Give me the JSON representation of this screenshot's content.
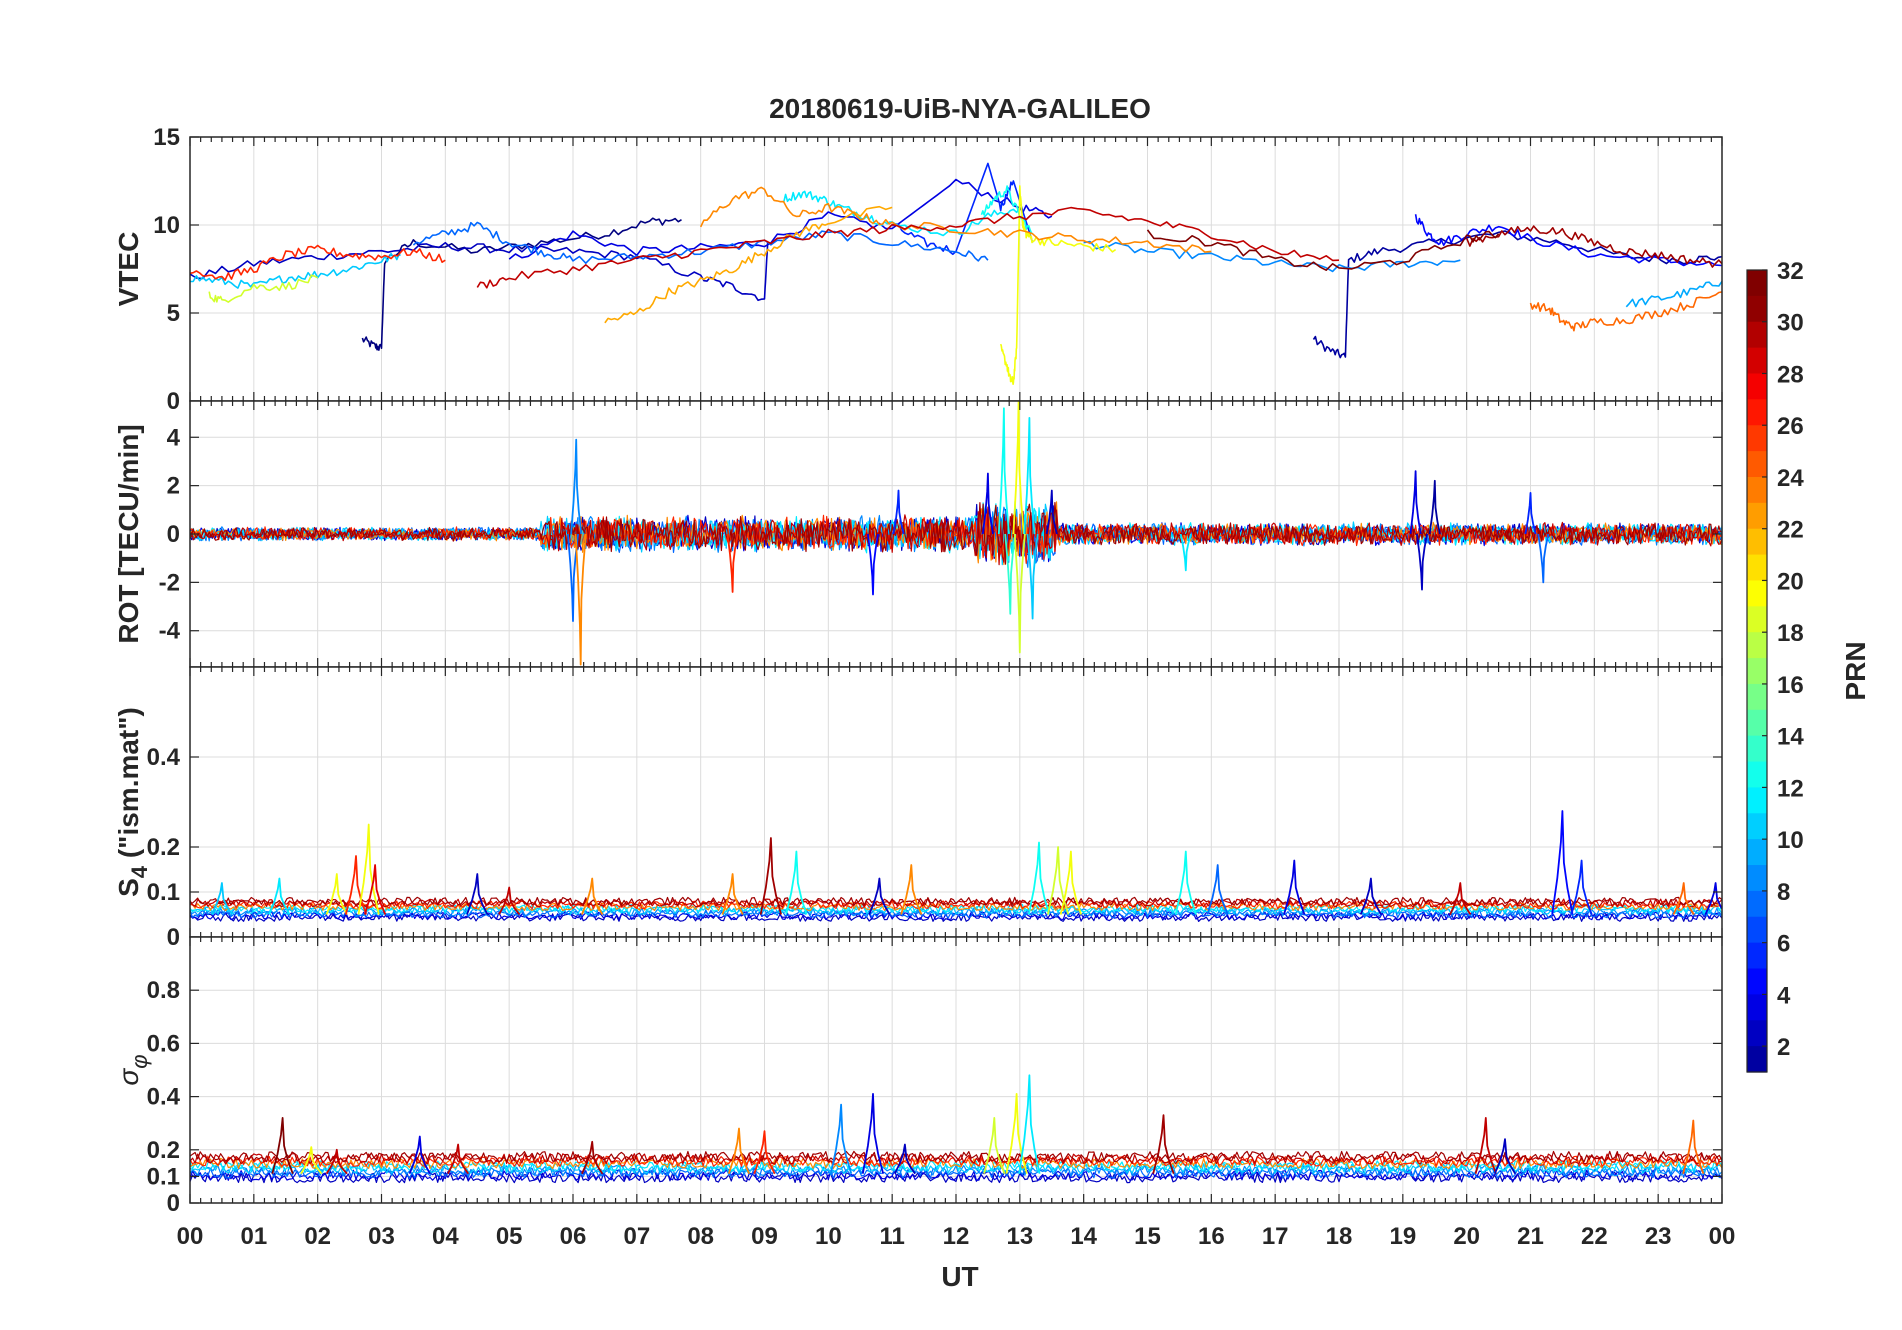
{
  "chart_data": {
    "type": "line",
    "title": "20180619-UiB-NYA-GALILEO",
    "xlabel": "UT",
    "x_ticks": [
      "00",
      "01",
      "02",
      "03",
      "04",
      "05",
      "06",
      "07",
      "08",
      "09",
      "10",
      "11",
      "12",
      "13",
      "14",
      "15",
      "16",
      "17",
      "18",
      "19",
      "20",
      "21",
      "22",
      "23",
      "00"
    ],
    "xlim": [
      0,
      24
    ],
    "grid": true,
    "panels": [
      {
        "id": "vtec",
        "ylabel": "VTEC",
        "ylim": [
          0,
          15
        ],
        "yticks": [
          "0",
          "5",
          "10",
          "15"
        ],
        "ytick_values": [
          0,
          5,
          10,
          15
        ],
        "series": [
          {
            "prn": 1,
            "x": [
              2.7,
              2.9,
              3.0,
              3.05,
              3.5,
              4.5,
              5.5,
              6.5,
              7.2,
              7.7
            ],
            "y": [
              3.5,
              3.1,
              3.0,
              8.0,
              9.0,
              8.5,
              9.0,
              9.5,
              10.2,
              10.3
            ]
          },
          {
            "prn": 2,
            "x": [
              17.6,
              17.9,
              18.1,
              18.15,
              18.6,
              19.5,
              20.5,
              21.5,
              22.5,
              23.4,
              24.0
            ],
            "y": [
              3.5,
              2.8,
              2.5,
              8.0,
              8.5,
              9.0,
              9.5,
              9.0,
              8.2,
              8.0,
              8.2
            ]
          },
          {
            "prn": 3,
            "x": [
              0.0,
              1.0,
              2.0,
              3.0,
              4.0,
              5.0,
              6.0,
              7.0,
              8.0,
              8.5,
              9.0,
              9.05
            ],
            "y": [
              7.0,
              7.8,
              8.2,
              8.5,
              8.8,
              8.6,
              8.5,
              8.2,
              7.0,
              6.5,
              5.8,
              9.0
            ]
          },
          {
            "prn": 4,
            "x": [
              5.0,
              6.0,
              7.0,
              8.0,
              9.0,
              10.0,
              11.0,
              12.0,
              13.0,
              13.5
            ],
            "y": [
              8.0,
              9.5,
              8.5,
              8.7,
              9.0,
              10.5,
              9.8,
              12.5,
              11.0,
              10.5
            ]
          },
          {
            "prn": 5,
            "x": [
              19.2,
              19.4,
              19.6,
              20.0,
              20.5,
              21.0,
              22.0,
              23.0,
              24.0
            ],
            "y": [
              10.5,
              9.5,
              9.0,
              9.5,
              10.0,
              9.2,
              8.3,
              8.0,
              7.7
            ]
          },
          {
            "prn": 6,
            "x": [
              11.0,
              11.5,
              12.0,
              12.5,
              12.7,
              12.9,
              13.2
            ],
            "y": [
              10.0,
              9.0,
              8.5,
              13.5,
              11.0,
              12.5,
              9.0
            ]
          },
          {
            "prn": 8,
            "x": [
              3.5,
              4.0,
              4.5,
              5.0,
              5.5,
              6.0,
              7.0,
              8.0,
              9.0,
              10.0,
              11.0,
              12.0,
              12.5
            ],
            "y": [
              9.0,
              9.5,
              10.0,
              9.0,
              8.5,
              8.0,
              8.2,
              8.5,
              9.0,
              9.5,
              9.0,
              8.5,
              8.0
            ]
          },
          {
            "prn": 9,
            "x": [
              14.0,
              15.0,
              16.0,
              17.0,
              18.0,
              19.0,
              19.9
            ],
            "y": [
              9.0,
              8.5,
              8.2,
              7.8,
              7.5,
              7.8,
              8.0
            ]
          },
          {
            "prn": 10,
            "x": [
              22.5,
              23.0,
              23.5,
              24.0
            ],
            "y": [
              5.5,
              5.8,
              6.2,
              6.8
            ]
          },
          {
            "prn": 11,
            "x": [
              0.0,
              0.5,
              1.0,
              1.5,
              2.0,
              2.5,
              3.0,
              3.3
            ],
            "y": [
              7.0,
              6.8,
              6.5,
              7.0,
              7.2,
              7.5,
              8.0,
              8.3
            ]
          },
          {
            "prn": 12,
            "x": [
              9.3,
              9.6,
              9.9,
              10.2,
              10.6,
              11.0,
              12.0,
              12.5,
              13.0
            ],
            "y": [
              11.5,
              11.8,
              11.5,
              11.0,
              10.5,
              10.0,
              9.5,
              10.5,
              11.0
            ]
          },
          {
            "prn": 13,
            "x": [
              12.4,
              12.6,
              12.8,
              13.0,
              13.2
            ],
            "y": [
              10.5,
              11.5,
              12.0,
              10.5,
              9.5
            ]
          },
          {
            "prn": 19,
            "x": [
              0.3,
              0.5,
              1.0,
              1.5,
              2.0
            ],
            "y": [
              6.0,
              5.7,
              6.5,
              6.5,
              7.0
            ]
          },
          {
            "prn": 20,
            "x": [
              12.7,
              12.8,
              12.85,
              12.9,
              12.95,
              13.0,
              13.05,
              13.1,
              13.2,
              13.5,
              14.0,
              14.5
            ],
            "y": [
              3.0,
              2.0,
              1.2,
              1.1,
              3.0,
              12.0,
              10.0,
              9.5,
              9.2,
              9.0,
              8.8,
              8.6
            ]
          },
          {
            "prn": 23,
            "x": [
              6.5,
              7.0,
              7.5,
              8.0,
              8.5,
              9.0,
              9.5,
              10.0,
              11.0
            ],
            "y": [
              4.5,
              5.0,
              6.2,
              6.8,
              7.5,
              8.5,
              9.5,
              10.2,
              11.0
            ]
          },
          {
            "prn": 24,
            "x": [
              8.0,
              8.5,
              9.0,
              9.5,
              10.0,
              10.5,
              11.0,
              12.0,
              13.0,
              14.0,
              15.0,
              16.0
            ],
            "y": [
              10.0,
              11.5,
              12.0,
              10.5,
              11.0,
              10.5,
              10.0,
              9.8,
              9.5,
              9.2,
              9.0,
              8.5
            ]
          },
          {
            "prn": 25,
            "x": [
              21.0,
              21.3,
              21.5,
              21.7,
              22.0,
              22.5,
              23.0,
              23.5,
              24.0
            ],
            "y": [
              5.5,
              5.2,
              4.5,
              4.2,
              4.5,
              4.6,
              5.0,
              5.5,
              6.2
            ]
          },
          {
            "prn": 27,
            "x": [
              0.0,
              0.5,
              1.0,
              1.5,
              2.0,
              2.5,
              3.0,
              3.5,
              4.0
            ],
            "y": [
              7.5,
              7.0,
              7.5,
              8.3,
              8.6,
              8.3,
              8.2,
              8.5,
              8.0
            ]
          },
          {
            "prn": 30,
            "x": [
              4.5,
              5.0,
              6.0,
              7.0,
              8.0,
              9.0,
              10.0,
              11.0,
              12.0,
              13.0,
              14.0,
              15.0,
              16.0,
              17.0,
              18.0
            ],
            "y": [
              6.5,
              7.0,
              7.5,
              8.0,
              8.5,
              9.0,
              9.5,
              9.8,
              10.0,
              10.5,
              10.8,
              10.2,
              9.5,
              8.5,
              8.0
            ]
          },
          {
            "prn": 31,
            "x": [
              20.0,
              20.5,
              21.0,
              21.5,
              22.0,
              22.5,
              23.0,
              23.5,
              24.0
            ],
            "y": [
              9.0,
              9.5,
              9.8,
              9.6,
              9.0,
              8.5,
              8.3,
              8.0,
              7.8
            ]
          },
          {
            "prn": 32,
            "x": [
              15.0,
              16.0,
              17.0,
              18.0,
              19.0,
              20.0,
              20.5
            ],
            "y": [
              9.5,
              9.0,
              8.0,
              7.5,
              8.0,
              9.2,
              9.5
            ]
          }
        ]
      },
      {
        "id": "rot",
        "ylabel": "ROT [TECU/min]",
        "ylim": [
          -5.5,
          5.5
        ],
        "yticks": [
          "-4",
          "-2",
          "0",
          "2",
          "4"
        ],
        "ytick_values": [
          -4,
          -2,
          0,
          2,
          4
        ],
        "noise_bands": [
          {
            "x0": 0,
            "x1": 5.5,
            "amp": 0.3
          },
          {
            "x0": 5.5,
            "x1": 12.3,
            "amp": 0.8
          },
          {
            "x0": 12.3,
            "x1": 13.6,
            "amp": 1.4
          },
          {
            "x0": 13.6,
            "x1": 24,
            "amp": 0.5
          }
        ],
        "spikes": [
          {
            "x": 6.05,
            "y": 3.9,
            "prn": 9
          },
          {
            "x": 6.0,
            "y": -3.6,
            "prn": 8
          },
          {
            "x": 6.12,
            "y": -5.4,
            "prn": 24
          },
          {
            "x": 8.5,
            "y": -2.4,
            "prn": 27
          },
          {
            "x": 10.7,
            "y": -2.5,
            "prn": 5
          },
          {
            "x": 11.1,
            "y": 1.8,
            "prn": 6
          },
          {
            "x": 12.5,
            "y": 2.5,
            "prn": 4
          },
          {
            "x": 12.75,
            "y": 5.2,
            "prn": 13
          },
          {
            "x": 12.85,
            "y": -3.3,
            "prn": 14
          },
          {
            "x": 12.98,
            "y": 5.5,
            "prn": 20
          },
          {
            "x": 13.0,
            "y": -4.9,
            "prn": 19
          },
          {
            "x": 13.15,
            "y": 4.8,
            "prn": 12
          },
          {
            "x": 13.2,
            "y": -3.5,
            "prn": 11
          },
          {
            "x": 13.5,
            "y": 1.8,
            "prn": 3
          },
          {
            "x": 15.6,
            "y": -1.5,
            "prn": 12
          },
          {
            "x": 19.2,
            "y": 2.6,
            "prn": 4
          },
          {
            "x": 19.3,
            "y": -2.3,
            "prn": 3
          },
          {
            "x": 19.5,
            "y": 2.2,
            "prn": 2
          },
          {
            "x": 21.0,
            "y": 1.7,
            "prn": 6
          },
          {
            "x": 21.2,
            "y": -2.0,
            "prn": 8
          }
        ]
      },
      {
        "id": "s4",
        "ylabel": "S4 (\"ism.mat\")",
        "ylabel_main": "S",
        "ylabel_sub": "4",
        "ylabel_rest": " (\"ism.mat\")",
        "ylim": [
          0,
          0.6
        ],
        "yticks": [
          "0",
          "0.1",
          "0.2",
          "0.4"
        ],
        "ytick_values": [
          0,
          0.1,
          0.2,
          0.4
        ],
        "baseline": 0.05,
        "spikes": [
          {
            "x": 0.5,
            "y": 0.12,
            "prn": 11
          },
          {
            "x": 1.4,
            "y": 0.13,
            "prn": 12
          },
          {
            "x": 2.3,
            "y": 0.14,
            "prn": 20
          },
          {
            "x": 2.6,
            "y": 0.18,
            "prn": 27
          },
          {
            "x": 2.8,
            "y": 0.25,
            "prn": 20
          },
          {
            "x": 2.9,
            "y": 0.16,
            "prn": 29
          },
          {
            "x": 4.5,
            "y": 0.14,
            "prn": 3
          },
          {
            "x": 5.0,
            "y": 0.11,
            "prn": 30
          },
          {
            "x": 6.3,
            "y": 0.13,
            "prn": 24
          },
          {
            "x": 8.5,
            "y": 0.14,
            "prn": 24
          },
          {
            "x": 9.1,
            "y": 0.22,
            "prn": 31
          },
          {
            "x": 9.5,
            "y": 0.19,
            "prn": 13
          },
          {
            "x": 10.8,
            "y": 0.13,
            "prn": 3
          },
          {
            "x": 11.3,
            "y": 0.16,
            "prn": 24
          },
          {
            "x": 13.3,
            "y": 0.21,
            "prn": 13
          },
          {
            "x": 13.6,
            "y": 0.2,
            "prn": 19
          },
          {
            "x": 13.8,
            "y": 0.19,
            "prn": 20
          },
          {
            "x": 15.6,
            "y": 0.19,
            "prn": 13
          },
          {
            "x": 16.1,
            "y": 0.16,
            "prn": 8
          },
          {
            "x": 17.3,
            "y": 0.17,
            "prn": 4
          },
          {
            "x": 18.5,
            "y": 0.13,
            "prn": 3
          },
          {
            "x": 19.9,
            "y": 0.12,
            "prn": 30
          },
          {
            "x": 21.5,
            "y": 0.28,
            "prn": 5
          },
          {
            "x": 21.8,
            "y": 0.17,
            "prn": 6
          },
          {
            "x": 23.4,
            "y": 0.12,
            "prn": 25
          },
          {
            "x": 23.9,
            "y": 0.12,
            "prn": 4
          }
        ]
      },
      {
        "id": "sigma_phi",
        "ylabel": "σφ",
        "ylabel_main": "σ",
        "ylabel_sub": "φ",
        "ylim": [
          0,
          1.0
        ],
        "yticks": [
          "0",
          "0.1",
          "0.2",
          "0.4",
          "0.6",
          "0.8"
        ],
        "ytick_values": [
          0,
          0.1,
          0.2,
          0.4,
          0.6,
          0.8
        ],
        "baseline": 0.11,
        "spikes": [
          {
            "x": 1.45,
            "y": 0.32,
            "prn": 32
          },
          {
            "x": 1.9,
            "y": 0.21,
            "prn": 20
          },
          {
            "x": 2.3,
            "y": 0.2,
            "prn": 30
          },
          {
            "x": 3.6,
            "y": 0.25,
            "prn": 4
          },
          {
            "x": 4.2,
            "y": 0.22,
            "prn": 30
          },
          {
            "x": 6.3,
            "y": 0.23,
            "prn": 31
          },
          {
            "x": 8.6,
            "y": 0.28,
            "prn": 24
          },
          {
            "x": 9.0,
            "y": 0.27,
            "prn": 27
          },
          {
            "x": 10.2,
            "y": 0.37,
            "prn": 9
          },
          {
            "x": 10.7,
            "y": 0.41,
            "prn": 4
          },
          {
            "x": 11.2,
            "y": 0.22,
            "prn": 3
          },
          {
            "x": 12.6,
            "y": 0.32,
            "prn": 19
          },
          {
            "x": 12.95,
            "y": 0.41,
            "prn": 20
          },
          {
            "x": 13.15,
            "y": 0.48,
            "prn": 12
          },
          {
            "x": 15.25,
            "y": 0.33,
            "prn": 31
          },
          {
            "x": 20.3,
            "y": 0.32,
            "prn": 30
          },
          {
            "x": 20.6,
            "y": 0.24,
            "prn": 3
          },
          {
            "x": 23.55,
            "y": 0.31,
            "prn": 25
          }
        ]
      }
    ],
    "colorbar": {
      "label": "PRN",
      "range": [
        1,
        32
      ],
      "ticks": [
        "2",
        "4",
        "6",
        "8",
        "10",
        "12",
        "14",
        "16",
        "18",
        "20",
        "22",
        "24",
        "26",
        "28",
        "30",
        "32"
      ],
      "tick_values": [
        2,
        4,
        6,
        8,
        10,
        12,
        14,
        16,
        18,
        20,
        22,
        24,
        26,
        28,
        30,
        32
      ],
      "colormap": "jet"
    }
  }
}
